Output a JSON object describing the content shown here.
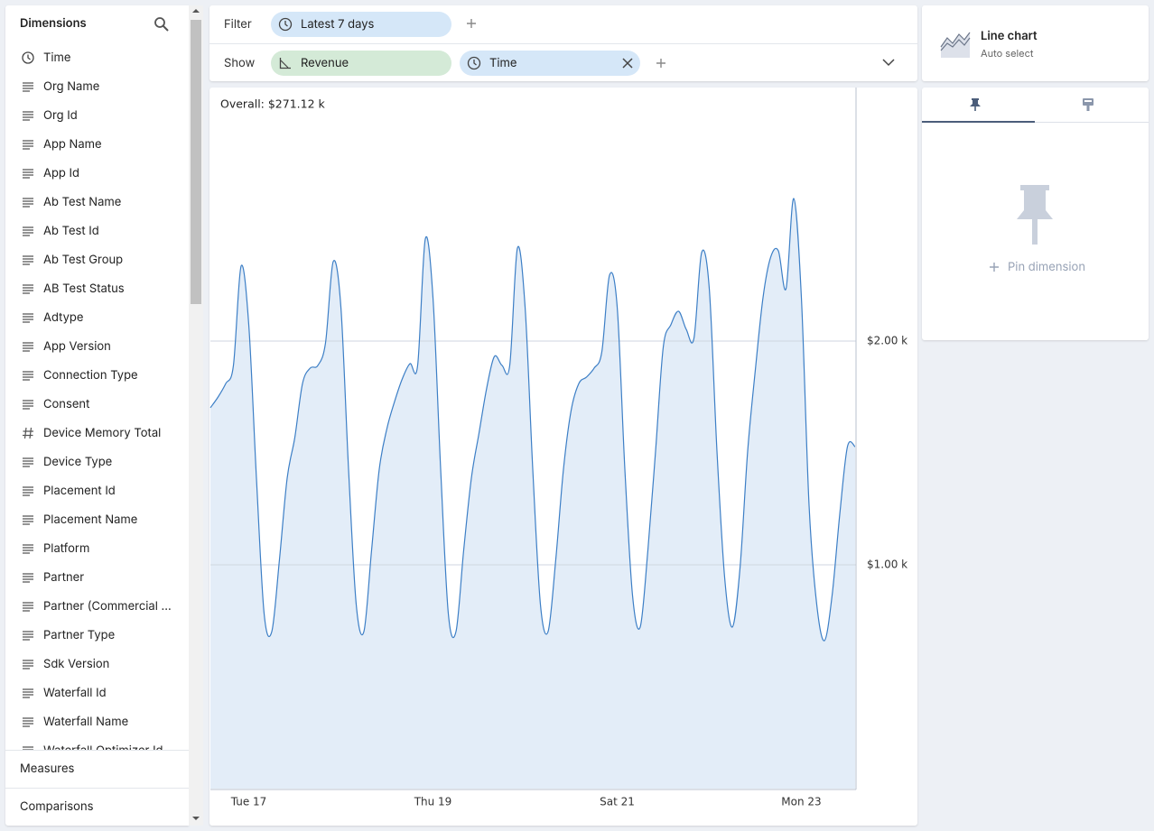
{
  "sidebar": {
    "title": "Dimensions",
    "items": [
      {
        "label": "Time",
        "icon": "time"
      },
      {
        "label": "Org Name",
        "icon": "text"
      },
      {
        "label": "Org Id",
        "icon": "text"
      },
      {
        "label": "App Name",
        "icon": "text"
      },
      {
        "label": "App Id",
        "icon": "text"
      },
      {
        "label": "Ab Test Name",
        "icon": "text"
      },
      {
        "label": "Ab Test Id",
        "icon": "text"
      },
      {
        "label": "Ab Test Group",
        "icon": "text"
      },
      {
        "label": "AB Test Status",
        "icon": "text"
      },
      {
        "label": "Adtype",
        "icon": "text"
      },
      {
        "label": "App Version",
        "icon": "text"
      },
      {
        "label": "Connection Type",
        "icon": "text"
      },
      {
        "label": "Consent",
        "icon": "text"
      },
      {
        "label": "Device Memory Total",
        "icon": "number"
      },
      {
        "label": "Device Type",
        "icon": "text"
      },
      {
        "label": "Placement Id",
        "icon": "text"
      },
      {
        "label": "Placement Name",
        "icon": "text"
      },
      {
        "label": "Platform",
        "icon": "text"
      },
      {
        "label": "Partner",
        "icon": "text"
      },
      {
        "label": "Partner (Commercial ...",
        "icon": "text"
      },
      {
        "label": "Partner Type",
        "icon": "text"
      },
      {
        "label": "Sdk Version",
        "icon": "text"
      },
      {
        "label": "Waterfall Id",
        "icon": "text"
      },
      {
        "label": "Waterfall Name",
        "icon": "text"
      },
      {
        "label": "Waterfall Optimizer Id",
        "icon": "text"
      }
    ],
    "sections": [
      "Measures",
      "Comparisons"
    ]
  },
  "filter_bar": {
    "filter_label": "Filter",
    "filter_pill": "Latest 7 days",
    "show_label": "Show",
    "show_pills": [
      "Revenue",
      "Time"
    ]
  },
  "chart_data": {
    "type": "line",
    "annotation": "Overall: $271.12 k",
    "color": "#3d7fc6",
    "fill_color": "#e3edf8",
    "categories": [
      null,
      null,
      null,
      null,
      null,
      "Tue 17",
      null,
      null,
      null,
      null,
      null,
      null,
      null,
      null,
      null,
      null,
      null,
      null,
      null,
      null,
      null,
      null,
      null,
      null,
      null,
      null,
      null,
      null,
      null,
      "Thu 19",
      null,
      null,
      null,
      null,
      null,
      null,
      null,
      null,
      null,
      null,
      null,
      null,
      null,
      null,
      null,
      null,
      null,
      null,
      null,
      null,
      null,
      null,
      null,
      "Sat 21",
      null,
      null,
      null,
      null,
      null,
      null,
      null,
      null,
      null,
      null,
      null,
      null,
      null,
      null,
      null,
      null,
      null,
      null,
      null,
      null,
      null,
      null,
      null,
      "Mon 23",
      null,
      null,
      null,
      null,
      null,
      null,
      null
    ],
    "values": [
      1702,
      1750,
      1810,
      1891,
      2335,
      2073,
      1387,
      782,
      702,
      1024,
      1387,
      1569,
      1810,
      1879,
      1891,
      1992,
      2355,
      2153,
      1427,
      823,
      702,
      1065,
      1427,
      1609,
      1730,
      1831,
      1899,
      1891,
      2456,
      2194,
      1427,
      782,
      702,
      1065,
      1387,
      1589,
      1790,
      1931,
      1891,
      1891,
      2415,
      2153,
      1427,
      823,
      702,
      1024,
      1427,
      1690,
      1810,
      1839,
      1879,
      1952,
      2294,
      2153,
      1427,
      863,
      722,
      1065,
      1508,
      1972,
      2073,
      2133,
      2052,
      2012,
      2395,
      2234,
      1508,
      944,
      722,
      984,
      1508,
      1871,
      2194,
      2375,
      2403,
      2234,
      2637,
      2194,
      1266,
      823,
      661,
      863,
      1226,
      1528,
      1528
    ],
    "ylim": [
      0,
      3133
    ],
    "yticks": [
      {
        "value": 1000,
        "label": "$1.00 k"
      },
      {
        "value": 2000,
        "label": "$2.00 k"
      }
    ],
    "grid": true
  },
  "chart_picker": {
    "title": "Line chart",
    "subtitle": "Auto select"
  },
  "pin_panel": {
    "action": "Pin dimension"
  }
}
